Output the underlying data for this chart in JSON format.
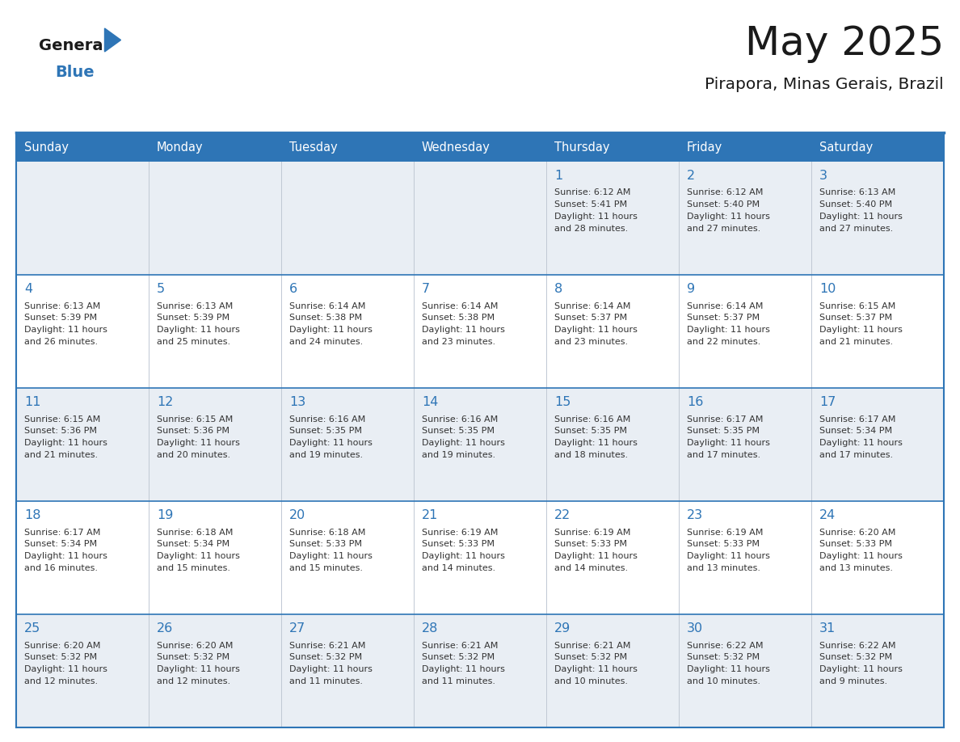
{
  "title": "May 2025",
  "subtitle": "Pirapora, Minas Gerais, Brazil",
  "header_bg": "#2E75B6",
  "header_text": "#FFFFFF",
  "row_bg_light": "#E9EEF4",
  "row_bg_white": "#FFFFFF",
  "day_num_color": "#2E75B6",
  "text_color": "#333333",
  "border_color": "#2E75B6",
  "day_headers": [
    "Sunday",
    "Monday",
    "Tuesday",
    "Wednesday",
    "Thursday",
    "Friday",
    "Saturday"
  ],
  "days": [
    {
      "day": 1,
      "col": 4,
      "row": 0,
      "sunrise": "6:12 AM",
      "sunset": "5:41 PM",
      "daylight_h": "11 hours",
      "daylight_m": "28 minutes."
    },
    {
      "day": 2,
      "col": 5,
      "row": 0,
      "sunrise": "6:12 AM",
      "sunset": "5:40 PM",
      "daylight_h": "11 hours",
      "daylight_m": "27 minutes."
    },
    {
      "day": 3,
      "col": 6,
      "row": 0,
      "sunrise": "6:13 AM",
      "sunset": "5:40 PM",
      "daylight_h": "11 hours",
      "daylight_m": "27 minutes."
    },
    {
      "day": 4,
      "col": 0,
      "row": 1,
      "sunrise": "6:13 AM",
      "sunset": "5:39 PM",
      "daylight_h": "11 hours",
      "daylight_m": "26 minutes."
    },
    {
      "day": 5,
      "col": 1,
      "row": 1,
      "sunrise": "6:13 AM",
      "sunset": "5:39 PM",
      "daylight_h": "11 hours",
      "daylight_m": "25 minutes."
    },
    {
      "day": 6,
      "col": 2,
      "row": 1,
      "sunrise": "6:14 AM",
      "sunset": "5:38 PM",
      "daylight_h": "11 hours",
      "daylight_m": "24 minutes."
    },
    {
      "day": 7,
      "col": 3,
      "row": 1,
      "sunrise": "6:14 AM",
      "sunset": "5:38 PM",
      "daylight_h": "11 hours",
      "daylight_m": "23 minutes."
    },
    {
      "day": 8,
      "col": 4,
      "row": 1,
      "sunrise": "6:14 AM",
      "sunset": "5:37 PM",
      "daylight_h": "11 hours",
      "daylight_m": "23 minutes."
    },
    {
      "day": 9,
      "col": 5,
      "row": 1,
      "sunrise": "6:14 AM",
      "sunset": "5:37 PM",
      "daylight_h": "11 hours",
      "daylight_m": "22 minutes."
    },
    {
      "day": 10,
      "col": 6,
      "row": 1,
      "sunrise": "6:15 AM",
      "sunset": "5:37 PM",
      "daylight_h": "11 hours",
      "daylight_m": "21 minutes."
    },
    {
      "day": 11,
      "col": 0,
      "row": 2,
      "sunrise": "6:15 AM",
      "sunset": "5:36 PM",
      "daylight_h": "11 hours",
      "daylight_m": "21 minutes."
    },
    {
      "day": 12,
      "col": 1,
      "row": 2,
      "sunrise": "6:15 AM",
      "sunset": "5:36 PM",
      "daylight_h": "11 hours",
      "daylight_m": "20 minutes."
    },
    {
      "day": 13,
      "col": 2,
      "row": 2,
      "sunrise": "6:16 AM",
      "sunset": "5:35 PM",
      "daylight_h": "11 hours",
      "daylight_m": "19 minutes."
    },
    {
      "day": 14,
      "col": 3,
      "row": 2,
      "sunrise": "6:16 AM",
      "sunset": "5:35 PM",
      "daylight_h": "11 hours",
      "daylight_m": "19 minutes."
    },
    {
      "day": 15,
      "col": 4,
      "row": 2,
      "sunrise": "6:16 AM",
      "sunset": "5:35 PM",
      "daylight_h": "11 hours",
      "daylight_m": "18 minutes."
    },
    {
      "day": 16,
      "col": 5,
      "row": 2,
      "sunrise": "6:17 AM",
      "sunset": "5:35 PM",
      "daylight_h": "11 hours",
      "daylight_m": "17 minutes."
    },
    {
      "day": 17,
      "col": 6,
      "row": 2,
      "sunrise": "6:17 AM",
      "sunset": "5:34 PM",
      "daylight_h": "11 hours",
      "daylight_m": "17 minutes."
    },
    {
      "day": 18,
      "col": 0,
      "row": 3,
      "sunrise": "6:17 AM",
      "sunset": "5:34 PM",
      "daylight_h": "11 hours",
      "daylight_m": "16 minutes."
    },
    {
      "day": 19,
      "col": 1,
      "row": 3,
      "sunrise": "6:18 AM",
      "sunset": "5:34 PM",
      "daylight_h": "11 hours",
      "daylight_m": "15 minutes."
    },
    {
      "day": 20,
      "col": 2,
      "row": 3,
      "sunrise": "6:18 AM",
      "sunset": "5:33 PM",
      "daylight_h": "11 hours",
      "daylight_m": "15 minutes."
    },
    {
      "day": 21,
      "col": 3,
      "row": 3,
      "sunrise": "6:19 AM",
      "sunset": "5:33 PM",
      "daylight_h": "11 hours",
      "daylight_m": "14 minutes."
    },
    {
      "day": 22,
      "col": 4,
      "row": 3,
      "sunrise": "6:19 AM",
      "sunset": "5:33 PM",
      "daylight_h": "11 hours",
      "daylight_m": "14 minutes."
    },
    {
      "day": 23,
      "col": 5,
      "row": 3,
      "sunrise": "6:19 AM",
      "sunset": "5:33 PM",
      "daylight_h": "11 hours",
      "daylight_m": "13 minutes."
    },
    {
      "day": 24,
      "col": 6,
      "row": 3,
      "sunrise": "6:20 AM",
      "sunset": "5:33 PM",
      "daylight_h": "11 hours",
      "daylight_m": "13 minutes."
    },
    {
      "day": 25,
      "col": 0,
      "row": 4,
      "sunrise": "6:20 AM",
      "sunset": "5:32 PM",
      "daylight_h": "11 hours",
      "daylight_m": "12 minutes."
    },
    {
      "day": 26,
      "col": 1,
      "row": 4,
      "sunrise": "6:20 AM",
      "sunset": "5:32 PM",
      "daylight_h": "11 hours",
      "daylight_m": "12 minutes."
    },
    {
      "day": 27,
      "col": 2,
      "row": 4,
      "sunrise": "6:21 AM",
      "sunset": "5:32 PM",
      "daylight_h": "11 hours",
      "daylight_m": "11 minutes."
    },
    {
      "day": 28,
      "col": 3,
      "row": 4,
      "sunrise": "6:21 AM",
      "sunset": "5:32 PM",
      "daylight_h": "11 hours",
      "daylight_m": "11 minutes."
    },
    {
      "day": 29,
      "col": 4,
      "row": 4,
      "sunrise": "6:21 AM",
      "sunset": "5:32 PM",
      "daylight_h": "11 hours",
      "daylight_m": "10 minutes."
    },
    {
      "day": 30,
      "col": 5,
      "row": 4,
      "sunrise": "6:22 AM",
      "sunset": "5:32 PM",
      "daylight_h": "11 hours",
      "daylight_m": "10 minutes."
    },
    {
      "day": 31,
      "col": 6,
      "row": 4,
      "sunrise": "6:22 AM",
      "sunset": "5:32 PM",
      "daylight_h": "11 hours",
      "daylight_m": "9 minutes."
    }
  ],
  "num_rows": 5,
  "num_cols": 7
}
